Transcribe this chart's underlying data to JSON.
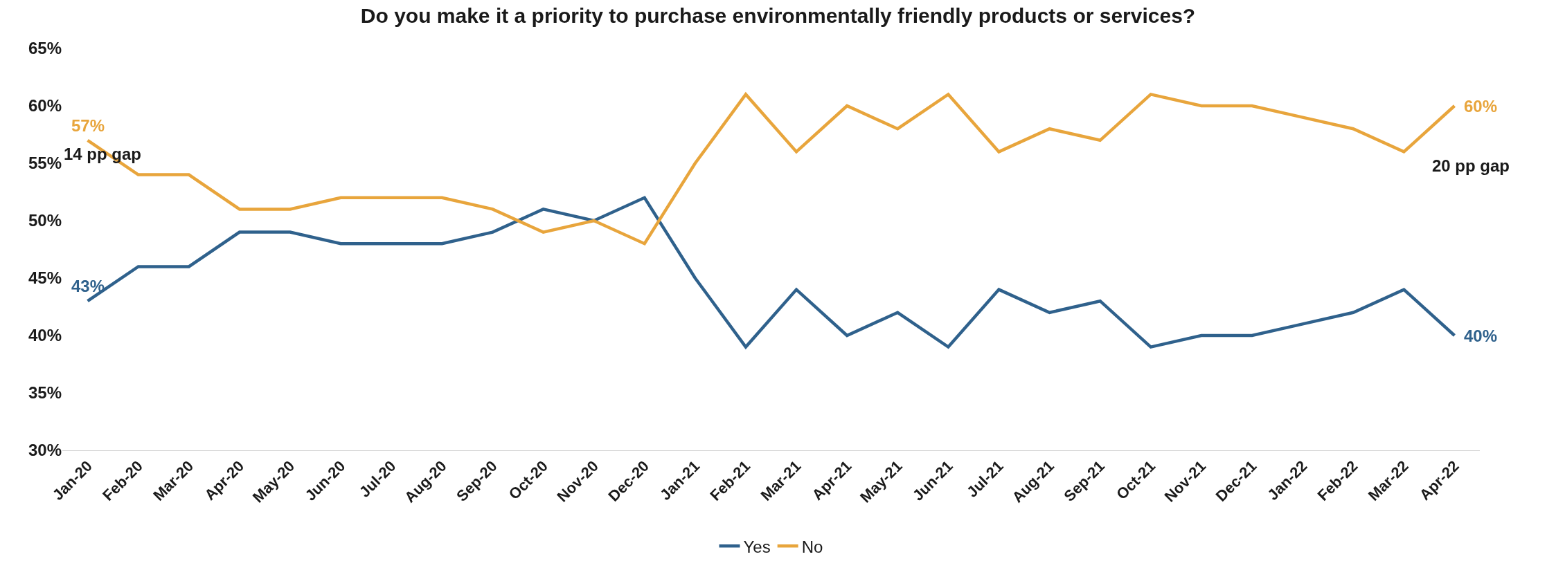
{
  "chart_data": {
    "type": "line",
    "title": "Do you make it a priority to purchase environmentally friendly products or services?",
    "categories": [
      "Jan-20",
      "Feb-20",
      "Mar-20",
      "Apr-20",
      "May-20",
      "Jun-20",
      "Jul-20",
      "Aug-20",
      "Sep-20",
      "Oct-20",
      "Nov-20",
      "Dec-20",
      "Jan-21",
      "Feb-21",
      "Mar-21",
      "Apr-21",
      "May-21",
      "Jun-21",
      "Jul-21",
      "Aug-21",
      "Sep-21",
      "Oct-21",
      "Nov-21",
      "Dec-21",
      "Jan-22",
      "Feb-22",
      "Mar-22",
      "Apr-22"
    ],
    "series": [
      {
        "name": "Yes",
        "color": "#2f618c",
        "values": [
          43,
          46,
          46,
          49,
          49,
          48,
          48,
          48,
          49,
          51,
          50,
          52,
          45,
          39,
          44,
          40,
          42,
          39,
          44,
          42,
          43,
          39,
          40,
          40,
          41,
          42,
          44,
          40
        ],
        "value_labels": [
          "43%",
          null,
          null,
          null,
          null,
          null,
          null,
          null,
          null,
          null,
          null,
          null,
          null,
          null,
          null,
          null,
          null,
          null,
          null,
          null,
          null,
          null,
          null,
          null,
          null,
          null,
          null,
          "40%"
        ]
      },
      {
        "name": "No",
        "color": "#e8a53c",
        "values": [
          57,
          54,
          54,
          51,
          51,
          52,
          52,
          52,
          51,
          49,
          50,
          48,
          55,
          61,
          56,
          60,
          58,
          61,
          56,
          58,
          57,
          61,
          60,
          60,
          59,
          58,
          56,
          60
        ],
        "value_labels": [
          "57%",
          null,
          null,
          null,
          null,
          null,
          null,
          null,
          null,
          null,
          null,
          null,
          null,
          null,
          null,
          null,
          null,
          null,
          null,
          null,
          null,
          null,
          null,
          null,
          null,
          null,
          null,
          "60%"
        ]
      }
    ],
    "annotations": [
      "14 pp gap",
      "20 pp gap"
    ],
    "ylim": [
      30,
      65
    ],
    "yticks": [
      {
        "value": 30,
        "label": "30%"
      },
      {
        "value": 35,
        "label": "35%"
      },
      {
        "value": 40,
        "label": "40%"
      },
      {
        "value": 45,
        "label": "45%"
      },
      {
        "value": 50,
        "label": "50%"
      },
      {
        "value": 55,
        "label": "55%"
      },
      {
        "value": 60,
        "label": "60%"
      },
      {
        "value": 65,
        "label": "65%"
      }
    ],
    "legend": "bottom",
    "marker": "none",
    "line_style": "solid"
  }
}
